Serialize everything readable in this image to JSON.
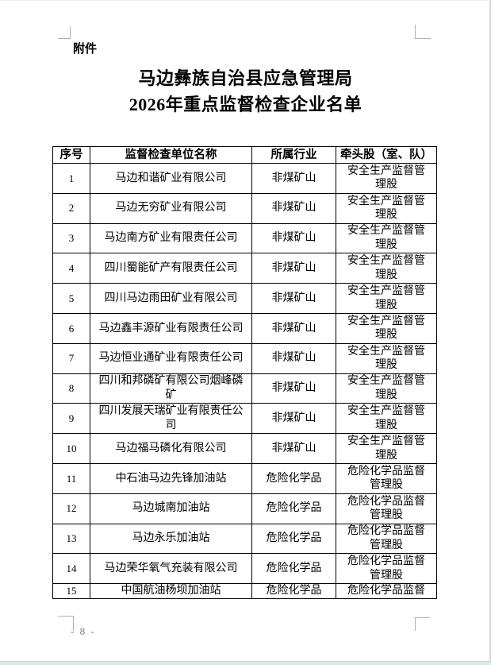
{
  "document": {
    "attachment_label": "附件",
    "title_line1": "马边彝族自治县应急管理局",
    "title_line2": "2026年重点监督检查企业名单",
    "page_number": "- 8 -"
  },
  "table": {
    "headers": [
      "序号",
      "监督检查单位名称",
      "所属行业",
      "牵头股（室、队）"
    ],
    "rows": [
      [
        "1",
        "马边和谐矿业有限公司",
        "非煤矿山",
        "安全生产监督管理股"
      ],
      [
        "2",
        "马边无穷矿业有限公司",
        "非煤矿山",
        "安全生产监督管理股"
      ],
      [
        "3",
        "马边南方矿业有限责任公司",
        "非煤矿山",
        "安全生产监督管理股"
      ],
      [
        "4",
        "四川蜀能矿产有限责任公司",
        "非煤矿山",
        "安全生产监督管理股"
      ],
      [
        "5",
        "四川马边雨田矿业有限公司",
        "非煤矿山",
        "安全生产监督管理股"
      ],
      [
        "6",
        "马边鑫丰源矿业有限责任公司",
        "非煤矿山",
        "安全生产监督管理股"
      ],
      [
        "7",
        "马边恒业通矿业有限责任公司",
        "非煤矿山",
        "安全生产监督管理股"
      ],
      [
        "8",
        "四川和邦磷矿有限公司烟峰磷矿",
        "非煤矿山",
        "安全生产监督管理股"
      ],
      [
        "9",
        "四川发展天瑞矿业有限责任公司",
        "非煤矿山",
        "安全生产监督管理股"
      ],
      [
        "10",
        "马边福马磷化有限公司",
        "非煤矿山",
        "安全生产监督管理股"
      ],
      [
        "11",
        "中石油马边先锋加油站",
        "危险化学品",
        "危险化学品监督管理股"
      ],
      [
        "12",
        "马边城南加油站",
        "危险化学品",
        "危险化学品监督管理股"
      ],
      [
        "13",
        "马边永乐加油站",
        "危险化学品",
        "危险化学品监督管理股"
      ],
      [
        "14",
        "马边荣华氧气充装有限公司",
        "危险化学品",
        "危险化学品监督管理股"
      ],
      [
        "15",
        "中国航油杨坝加油站",
        "危险化学品",
        "危险化学品监督"
      ]
    ]
  },
  "colors": {
    "text": "#000000",
    "table_border": "#000000",
    "margin_mark_gray": "#b0b0b0",
    "page_number_gray": "#7a7a7a",
    "window_bottom_edge": "#dce9ea"
  }
}
